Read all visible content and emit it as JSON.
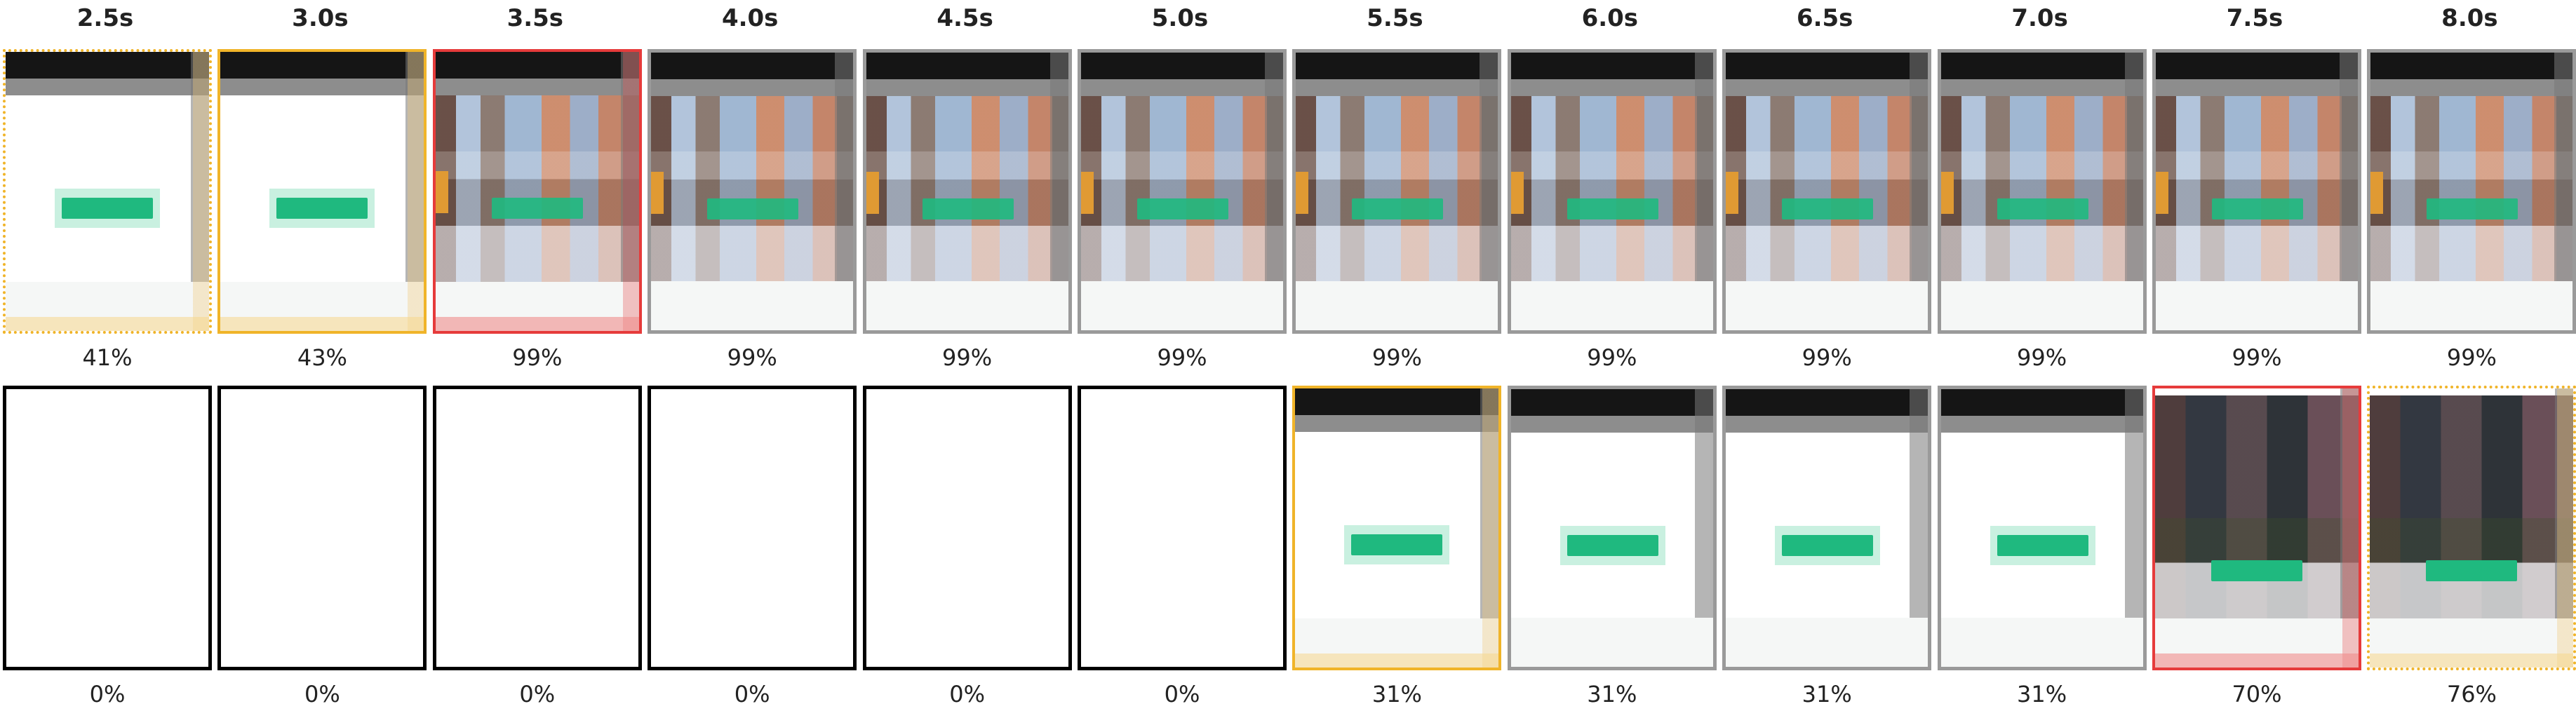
{
  "timestamps": [
    "2.5s",
    "3.0s",
    "3.5s",
    "4.0s",
    "4.5s",
    "5.0s",
    "5.5s",
    "6.0s",
    "6.5s",
    "7.0s",
    "7.5s",
    "8.0s"
  ],
  "rows": [
    {
      "frames": [
        {
          "state": "loading",
          "border": "yellow-dot",
          "percent": "41%"
        },
        {
          "state": "loading",
          "border": "yellow",
          "percent": "43%"
        },
        {
          "state": "photo",
          "border": "red",
          "percent": "99%"
        },
        {
          "state": "photo",
          "border": "black-top",
          "percent": "99%"
        },
        {
          "state": "photo",
          "border": "black-top",
          "percent": "99%"
        },
        {
          "state": "photo",
          "border": "black-top",
          "percent": "99%"
        },
        {
          "state": "photo",
          "border": "black-top",
          "percent": "99%"
        },
        {
          "state": "photo",
          "border": "black-top",
          "percent": "99%"
        },
        {
          "state": "photo",
          "border": "black-top",
          "percent": "99%"
        },
        {
          "state": "photo",
          "border": "black-top",
          "percent": "99%"
        },
        {
          "state": "photo",
          "border": "black-top",
          "percent": "99%"
        },
        {
          "state": "photo",
          "border": "black-top",
          "percent": "99%"
        }
      ]
    },
    {
      "frames": [
        {
          "state": "blank",
          "border": "black",
          "percent": "0%"
        },
        {
          "state": "blank",
          "border": "black",
          "percent": "0%"
        },
        {
          "state": "blank",
          "border": "black",
          "percent": "0%"
        },
        {
          "state": "blank",
          "border": "black",
          "percent": "0%"
        },
        {
          "state": "blank",
          "border": "black",
          "percent": "0%"
        },
        {
          "state": "blank",
          "border": "black",
          "percent": "0%"
        },
        {
          "state": "loading",
          "border": "yellow",
          "percent": "31%"
        },
        {
          "state": "loading",
          "border": "black-top",
          "percent": "31%"
        },
        {
          "state": "loading",
          "border": "black-top",
          "percent": "31%"
        },
        {
          "state": "loading",
          "border": "black-top",
          "percent": "31%"
        },
        {
          "state": "dark",
          "border": "red",
          "percent": "70%"
        },
        {
          "state": "dark",
          "border": "yellow-dot",
          "percent": "76%"
        }
      ]
    }
  ],
  "colors": {
    "green_bar": "#1fb97f",
    "yellow_border": "#f0b429",
    "red_border": "#e63b3b",
    "black_border": "#000000"
  }
}
